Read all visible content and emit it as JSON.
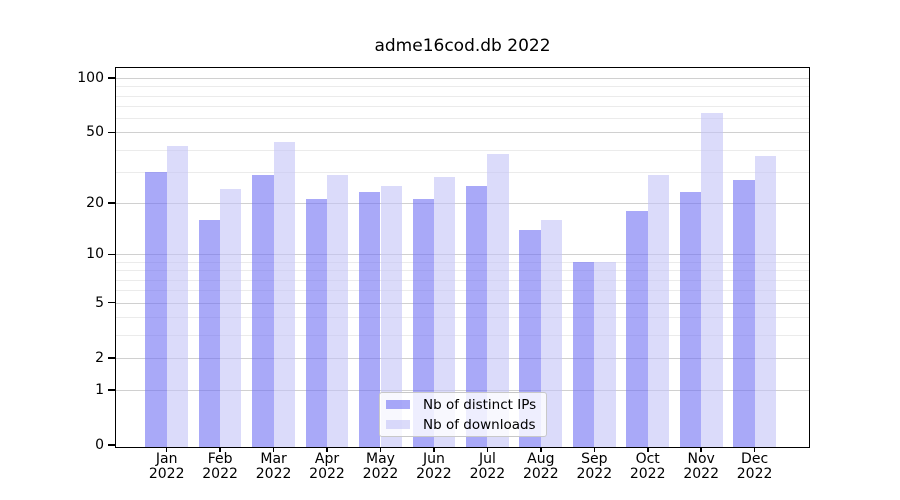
{
  "chart_data": {
    "type": "bar",
    "title": "adme16cod.db 2022",
    "categories": [
      "Jan",
      "Feb",
      "Mar",
      "Apr",
      "May",
      "Jun",
      "Jul",
      "Aug",
      "Sep",
      "Oct",
      "Nov",
      "Dec"
    ],
    "category_year": "2022",
    "series": [
      {
        "name": "Nb of distinct IPs",
        "color_hex": "#a9a9f8",
        "color_rgba": "rgba(112,112,243,0.6)",
        "values": [
          30,
          16,
          29,
          21,
          23,
          21,
          25,
          14,
          9,
          18,
          23,
          27
        ]
      },
      {
        "name": "Nb of downloads",
        "color_hex": "#dbdbf8",
        "color_rgba": "rgba(195,195,247,0.6)",
        "values": [
          42,
          24,
          44,
          29,
          25,
          28,
          38,
          16,
          9,
          29,
          64,
          37
        ]
      }
    ],
    "yscale": "log10(1+y)",
    "yticks": [
      0,
      1,
      2,
      5,
      10,
      20,
      50,
      100
    ],
    "minor_gridlines": [
      3,
      4,
      6,
      7,
      8,
      9,
      30,
      40,
      60,
      70,
      80,
      90
    ],
    "ylim": [
      0,
      115
    ],
    "grid": true,
    "legend_position": "lower center",
    "xlabel": "",
    "ylabel": ""
  },
  "colors": {
    "grid_major": "#d0d0d0",
    "grid_minor": "#ebebeb",
    "axis": "#000000",
    "background": "#ffffff"
  }
}
